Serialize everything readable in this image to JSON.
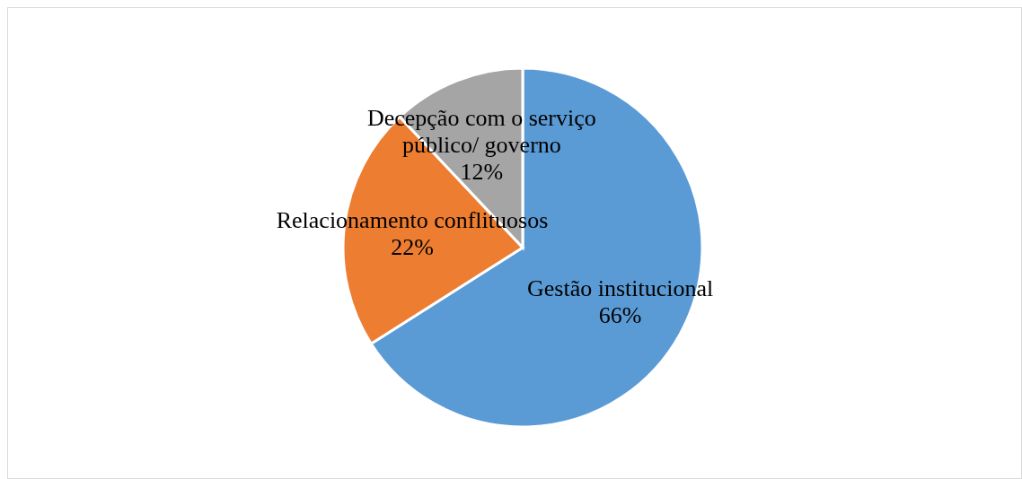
{
  "chart_data": {
    "type": "pie",
    "categories": [
      "Gestão institucional",
      "Relacionamento conflituosos",
      "Decepção com o serviço público/ governo"
    ],
    "values": [
      66,
      22,
      12
    ],
    "colors": [
      "#5b9bd5",
      "#ed7d31",
      "#a5a5a5"
    ],
    "value_labels": [
      "66%",
      "22%",
      "12%"
    ],
    "legend": false
  }
}
